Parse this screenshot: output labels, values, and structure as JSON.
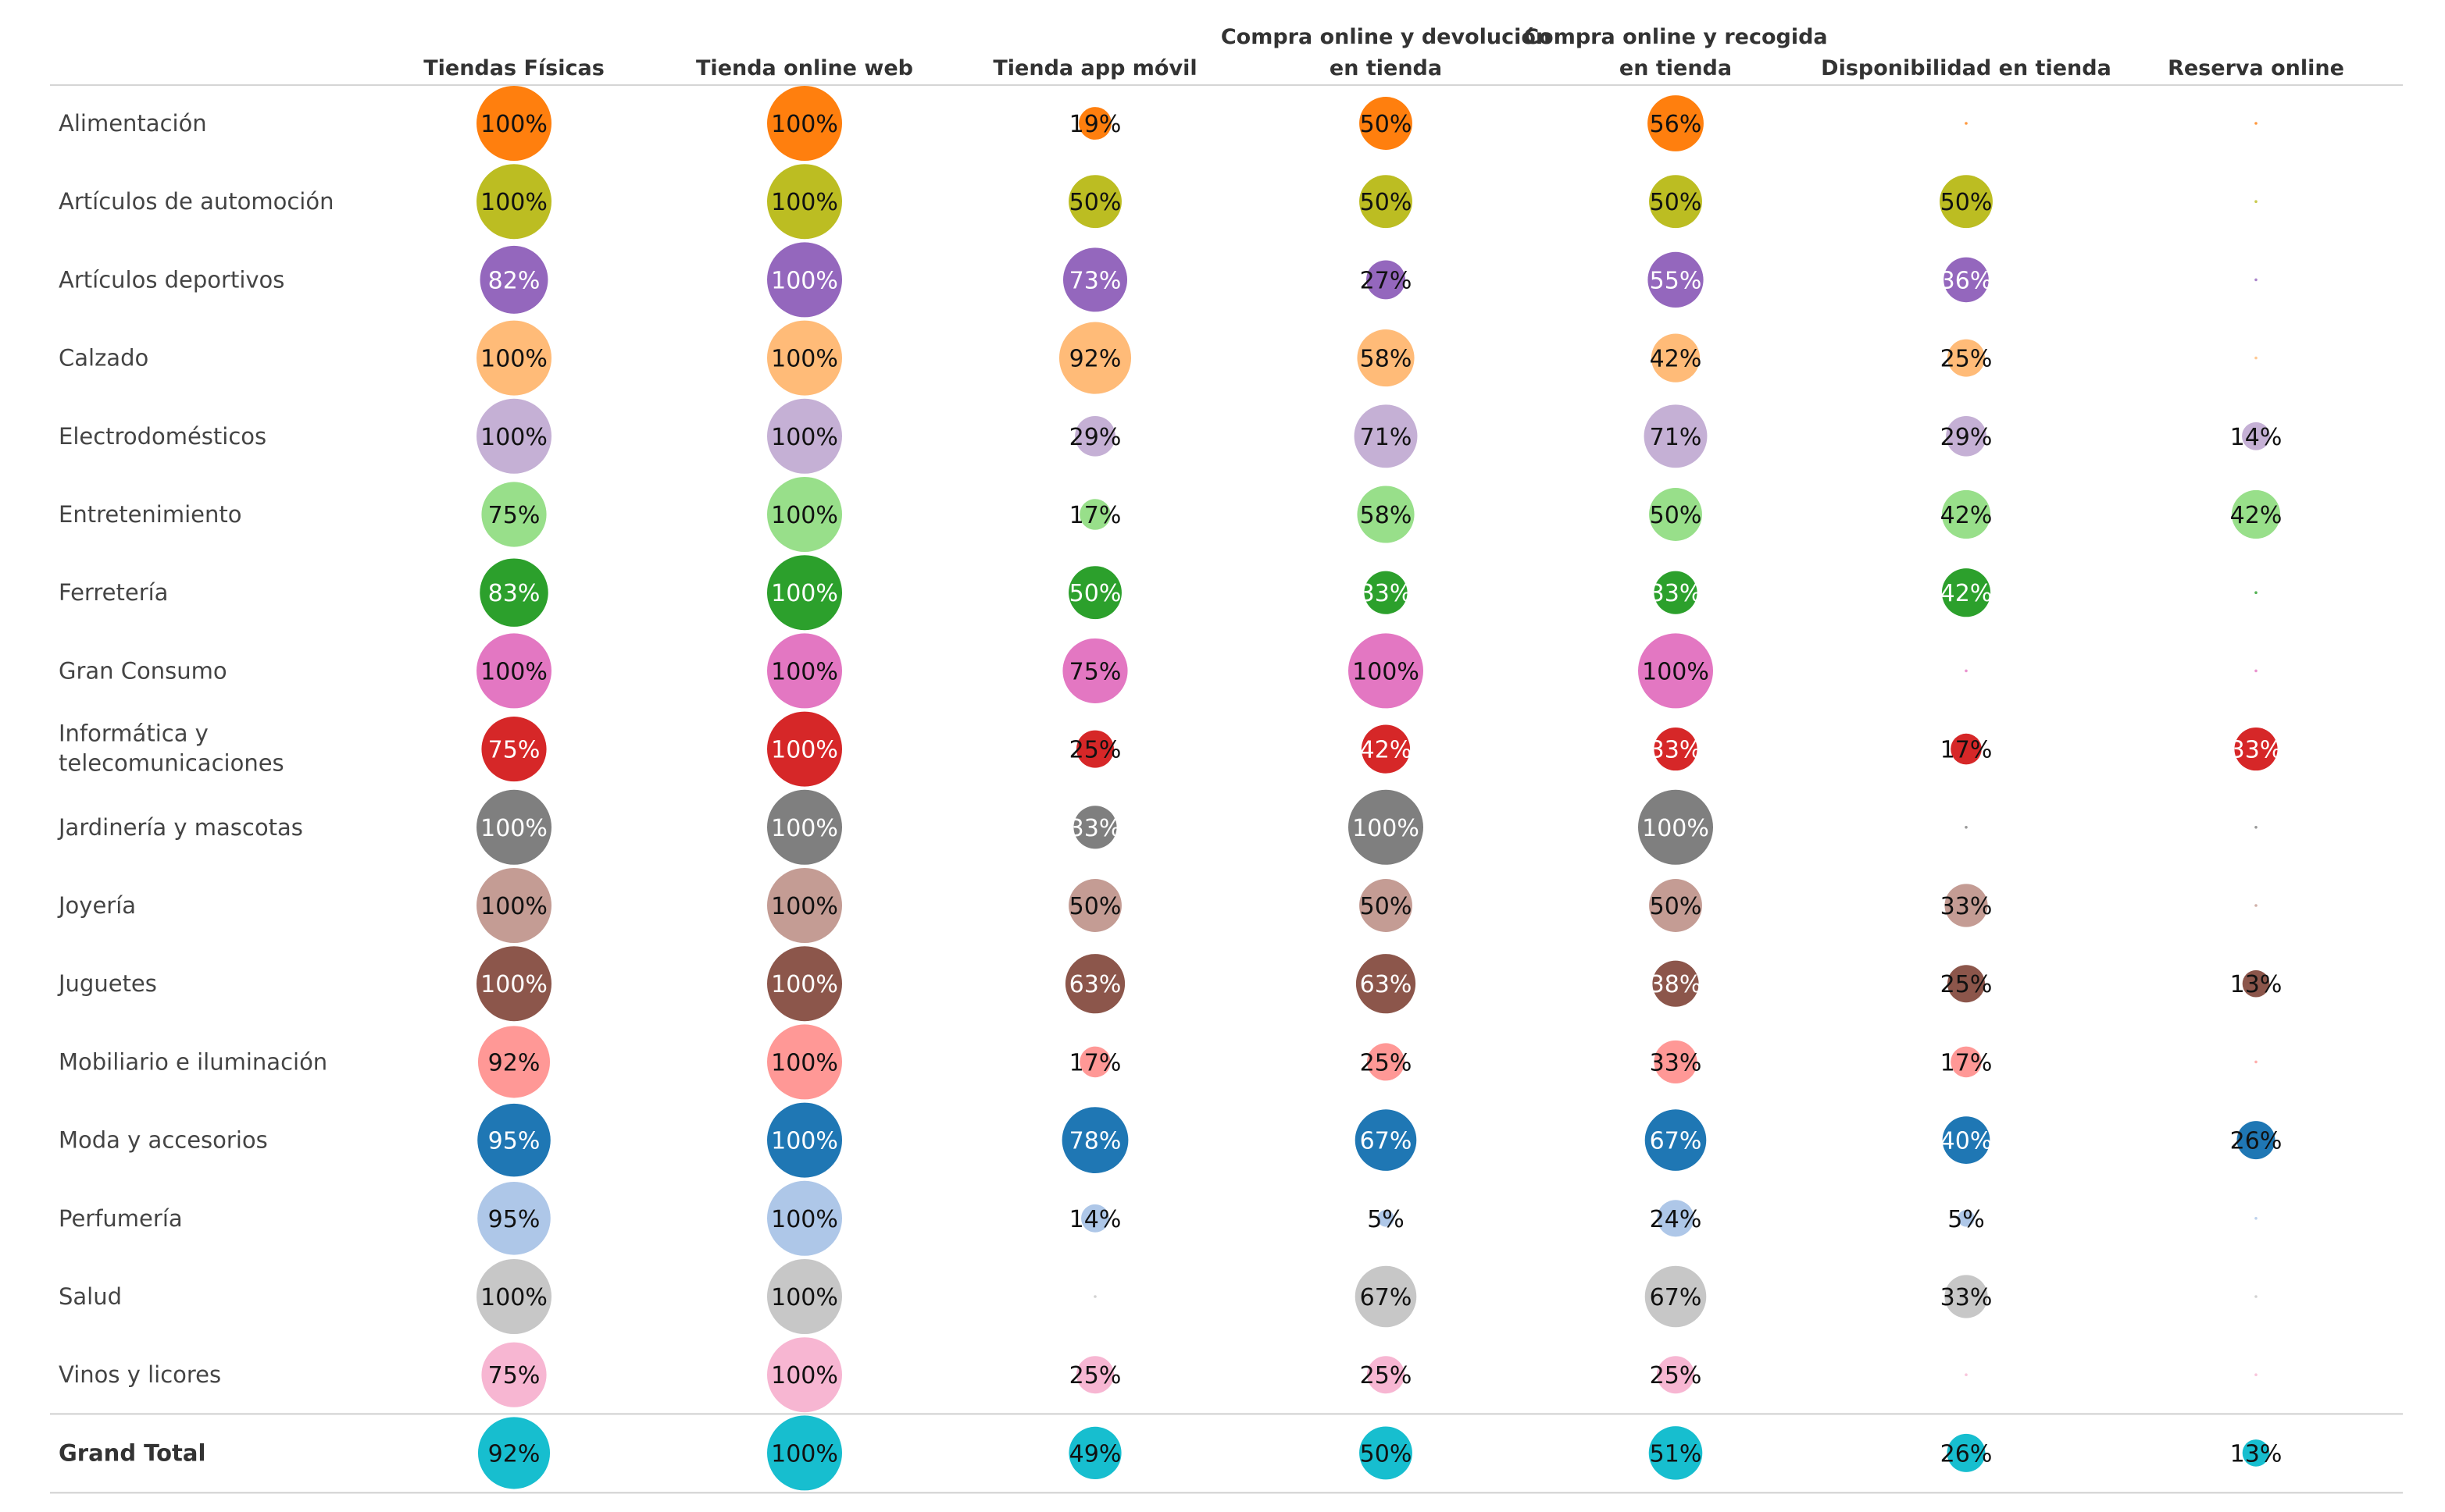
{
  "chart_data": {
    "type": "bubble-matrix",
    "columns": [
      "Tiendas Físicas",
      "Tienda online web",
      "Tienda app móvil",
      "Compra online y devolución en tienda",
      "Compra online y recogida en tienda",
      "Disponibilidad en tienda",
      "Reserva online"
    ],
    "rows": [
      {
        "label": "Alimentación",
        "color": "#ff7f0e",
        "values": [
          100,
          100,
          19,
          50,
          56,
          0,
          0
        ]
      },
      {
        "label": "Artículos de automoción",
        "color": "#bcbd22",
        "values": [
          100,
          100,
          50,
          50,
          50,
          50,
          0
        ]
      },
      {
        "label": "Artículos deportivos",
        "color": "#9467bd",
        "values": [
          82,
          100,
          73,
          27,
          55,
          36,
          0
        ]
      },
      {
        "label": "Calzado",
        "color": "#ffbb78",
        "values": [
          100,
          100,
          92,
          58,
          42,
          25,
          0
        ]
      },
      {
        "label": "Electrodomésticos",
        "color": "#c5b0d5",
        "values": [
          100,
          100,
          29,
          71,
          71,
          29,
          14
        ]
      },
      {
        "label": "Entretenimiento",
        "color": "#98df8a",
        "values": [
          75,
          100,
          17,
          58,
          50,
          42,
          42
        ]
      },
      {
        "label": "Ferretería",
        "color": "#2ca02c",
        "values": [
          83,
          100,
          50,
          33,
          33,
          42,
          0
        ]
      },
      {
        "label": "Gran Consumo",
        "color": "#e377c2",
        "values": [
          100,
          100,
          75,
          100,
          100,
          0,
          0
        ]
      },
      {
        "label": "Informática y telecomunicaciones",
        "color": "#d62728",
        "values": [
          75,
          100,
          25,
          42,
          33,
          17,
          33
        ]
      },
      {
        "label": "Jardinería y mascotas",
        "color": "#7f7f7f",
        "values": [
          100,
          100,
          33,
          100,
          100,
          0,
          0
        ]
      },
      {
        "label": "Joyería",
        "color": "#c49c94",
        "values": [
          100,
          100,
          50,
          50,
          50,
          33,
          0
        ]
      },
      {
        "label": "Juguetes",
        "color": "#8c564b",
        "values": [
          100,
          100,
          63,
          63,
          38,
          25,
          13
        ]
      },
      {
        "label": "Mobiliario e iluminación",
        "color": "#ff9896",
        "values": [
          92,
          100,
          17,
          25,
          33,
          17,
          0
        ]
      },
      {
        "label": "Moda y accesorios",
        "color": "#1f77b4",
        "values": [
          95,
          100,
          78,
          67,
          67,
          40,
          26
        ]
      },
      {
        "label": "Perfumería",
        "color": "#aec7e8",
        "values": [
          95,
          100,
          14,
          5,
          24,
          5,
          0
        ]
      },
      {
        "label": "Salud",
        "color": "#c7c7c7",
        "values": [
          100,
          100,
          0,
          67,
          67,
          33,
          0
        ]
      },
      {
        "label": "Vinos y licores",
        "color": "#f7b6d2",
        "values": [
          75,
          100,
          25,
          25,
          25,
          0,
          0
        ]
      },
      {
        "label": "Grand Total",
        "color": "#17becf",
        "values": [
          92,
          100,
          49,
          50,
          51,
          26,
          13
        ],
        "total": true
      }
    ],
    "value_suffix": "%",
    "dark_text_colors": [
      "#ff7f0e",
      "#bcbd22",
      "#ffbb78",
      "#c5b0d5",
      "#98df8a",
      "#e377c2",
      "#c49c94",
      "#ff9896",
      "#aec7e8",
      "#c7c7c7",
      "#f7b6d2",
      "#17becf"
    ]
  }
}
